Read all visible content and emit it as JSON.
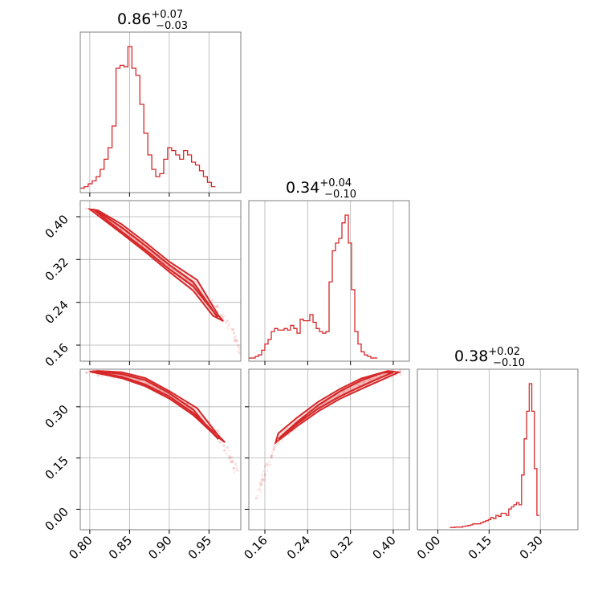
{
  "chart_data": {
    "type": "corner",
    "grid": true,
    "color": "#d62728",
    "parameters": [
      {
        "id": "p0",
        "title": {
          "median": "0.86",
          "plus": "+0.07",
          "minus": "−0.03"
        },
        "range": [
          0.788,
          0.99
        ],
        "ticks": [
          {
            "v": 0.8,
            "label": "0.80"
          },
          {
            "v": 0.85,
            "label": "0.85"
          },
          {
            "v": 0.9,
            "label": "0.90"
          },
          {
            "v": 0.95,
            "label": "0.95"
          }
        ],
        "hist_edges_start": 0.788,
        "hist_bin_width": 0.005,
        "hist_counts": [
          2,
          3,
          5,
          7,
          10,
          15,
          22,
          30,
          45,
          85,
          87,
          86,
          100,
          85,
          80,
          60,
          40,
          25,
          15,
          10,
          12,
          22,
          30,
          28,
          25,
          22,
          28,
          25,
          20,
          18,
          14,
          10,
          6,
          3
        ]
      },
      {
        "id": "p1",
        "title": {
          "median": "0.34",
          "plus": "+0.04",
          "minus": "−0.10"
        },
        "range": [
          0.13,
          0.43
        ],
        "ticks": [
          {
            "v": 0.16,
            "label": "0.16"
          },
          {
            "v": 0.24,
            "label": "0.24"
          },
          {
            "v": 0.32,
            "label": "0.32"
          },
          {
            "v": 0.4,
            "label": "0.40"
          }
        ],
        "hist_edges_start": 0.13,
        "hist_bin_width": 0.006,
        "hist_counts": [
          1,
          1,
          2,
          3,
          6,
          10,
          13,
          18,
          20,
          19,
          19,
          20,
          19,
          22,
          20,
          17,
          26,
          25,
          25,
          29,
          24,
          20,
          18,
          17,
          18,
          50,
          70,
          75,
          78,
          88,
          93,
          75,
          45,
          18,
          10,
          5,
          3,
          2,
          1,
          1
        ]
      },
      {
        "id": "p2",
        "title": {
          "median": "0.38",
          "plus": "+0.02",
          "minus": "−0.10"
        },
        "range": [
          -0.06,
          0.41
        ],
        "ticks": [
          {
            "v": 0.0,
            "label": "0.00"
          },
          {
            "v": 0.15,
            "label": "0.15"
          },
          {
            "v": 0.3,
            "label": "0.30"
          }
        ],
        "hist_edges_start": 0.035,
        "hist_bin_width": 0.0075,
        "hist_counts": [
          0.3,
          0.3,
          0.5,
          0.5,
          0.5,
          0.8,
          1,
          1.2,
          1.5,
          2,
          2,
          2,
          2.5,
          3,
          3.5,
          4,
          5,
          4.5,
          6,
          5.5,
          7,
          7,
          6,
          9,
          10,
          11,
          12,
          11,
          25,
          42,
          55,
          68,
          55,
          28,
          6
        ]
      }
    ],
    "pairs": [
      {
        "x": "p0",
        "y": "p1",
        "inner_contour": [
          [
            0.805,
            0.413
          ],
          [
            0.84,
            0.372
          ],
          [
            0.87,
            0.338
          ],
          [
            0.9,
            0.302
          ],
          [
            0.93,
            0.27
          ],
          [
            0.955,
            0.224
          ],
          [
            0.961,
            0.212
          ],
          [
            0.955,
            0.225
          ],
          [
            0.93,
            0.278
          ],
          [
            0.9,
            0.31
          ],
          [
            0.87,
            0.346
          ],
          [
            0.84,
            0.38
          ],
          [
            0.808,
            0.412
          ]
        ],
        "outer_contour": [
          [
            0.8,
            0.414
          ],
          [
            0.84,
            0.369
          ],
          [
            0.87,
            0.334
          ],
          [
            0.9,
            0.297
          ],
          [
            0.93,
            0.262
          ],
          [
            0.955,
            0.215
          ],
          [
            0.968,
            0.205
          ],
          [
            0.962,
            0.215
          ],
          [
            0.935,
            0.282
          ],
          [
            0.9,
            0.316
          ],
          [
            0.87,
            0.352
          ],
          [
            0.84,
            0.386
          ],
          [
            0.81,
            0.412
          ]
        ],
        "scatter_trend": [
          [
            0.795,
            0.418
          ],
          [
            0.84,
            0.375
          ],
          [
            0.87,
            0.34
          ],
          [
            0.9,
            0.305
          ],
          [
            0.93,
            0.272
          ],
          [
            0.96,
            0.23
          ],
          [
            0.98,
            0.185
          ],
          [
            0.99,
            0.145
          ]
        ]
      },
      {
        "x": "p0",
        "y": "p2",
        "inner_contour": [
          [
            0.805,
            0.402
          ],
          [
            0.84,
            0.388
          ],
          [
            0.87,
            0.365
          ],
          [
            0.9,
            0.33
          ],
          [
            0.93,
            0.282
          ],
          [
            0.955,
            0.228
          ],
          [
            0.962,
            0.205
          ],
          [
            0.955,
            0.222
          ],
          [
            0.93,
            0.292
          ],
          [
            0.9,
            0.34
          ],
          [
            0.87,
            0.378
          ],
          [
            0.84,
            0.396
          ],
          [
            0.808,
            0.404
          ]
        ],
        "outer_contour": [
          [
            0.8,
            0.403
          ],
          [
            0.84,
            0.384
          ],
          [
            0.87,
            0.36
          ],
          [
            0.9,
            0.324
          ],
          [
            0.93,
            0.276
          ],
          [
            0.955,
            0.222
          ],
          [
            0.97,
            0.196
          ],
          [
            0.962,
            0.215
          ],
          [
            0.935,
            0.296
          ],
          [
            0.9,
            0.346
          ],
          [
            0.87,
            0.384
          ],
          [
            0.84,
            0.401
          ],
          [
            0.81,
            0.405
          ]
        ],
        "scatter_trend": [
          [
            0.795,
            0.404
          ],
          [
            0.84,
            0.392
          ],
          [
            0.87,
            0.372
          ],
          [
            0.9,
            0.335
          ],
          [
            0.93,
            0.287
          ],
          [
            0.96,
            0.225
          ],
          [
            0.975,
            0.16
          ],
          [
            0.985,
            0.11
          ]
        ]
      },
      {
        "x": "p1",
        "y": "p2",
        "inner_contour": [
          [
            0.185,
            0.205
          ],
          [
            0.22,
            0.25
          ],
          [
            0.26,
            0.295
          ],
          [
            0.3,
            0.33
          ],
          [
            0.34,
            0.36
          ],
          [
            0.38,
            0.388
          ],
          [
            0.4,
            0.401
          ],
          [
            0.38,
            0.4
          ],
          [
            0.34,
            0.377
          ],
          [
            0.3,
            0.345
          ],
          [
            0.26,
            0.305
          ],
          [
            0.22,
            0.255
          ],
          [
            0.19,
            0.213
          ]
        ],
        "outer_contour": [
          [
            0.18,
            0.195
          ],
          [
            0.22,
            0.243
          ],
          [
            0.26,
            0.287
          ],
          [
            0.3,
            0.323
          ],
          [
            0.34,
            0.352
          ],
          [
            0.38,
            0.38
          ],
          [
            0.41,
            0.401
          ],
          [
            0.39,
            0.405
          ],
          [
            0.34,
            0.383
          ],
          [
            0.3,
            0.352
          ],
          [
            0.26,
            0.315
          ],
          [
            0.22,
            0.268
          ],
          [
            0.185,
            0.222
          ]
        ],
        "scatter_trend": [
          [
            0.145,
            0.03
          ],
          [
            0.16,
            0.11
          ],
          [
            0.18,
            0.19
          ],
          [
            0.22,
            0.25
          ],
          [
            0.26,
            0.3
          ],
          [
            0.3,
            0.337
          ],
          [
            0.34,
            0.365
          ],
          [
            0.38,
            0.39
          ],
          [
            0.42,
            0.405
          ]
        ]
      }
    ]
  }
}
